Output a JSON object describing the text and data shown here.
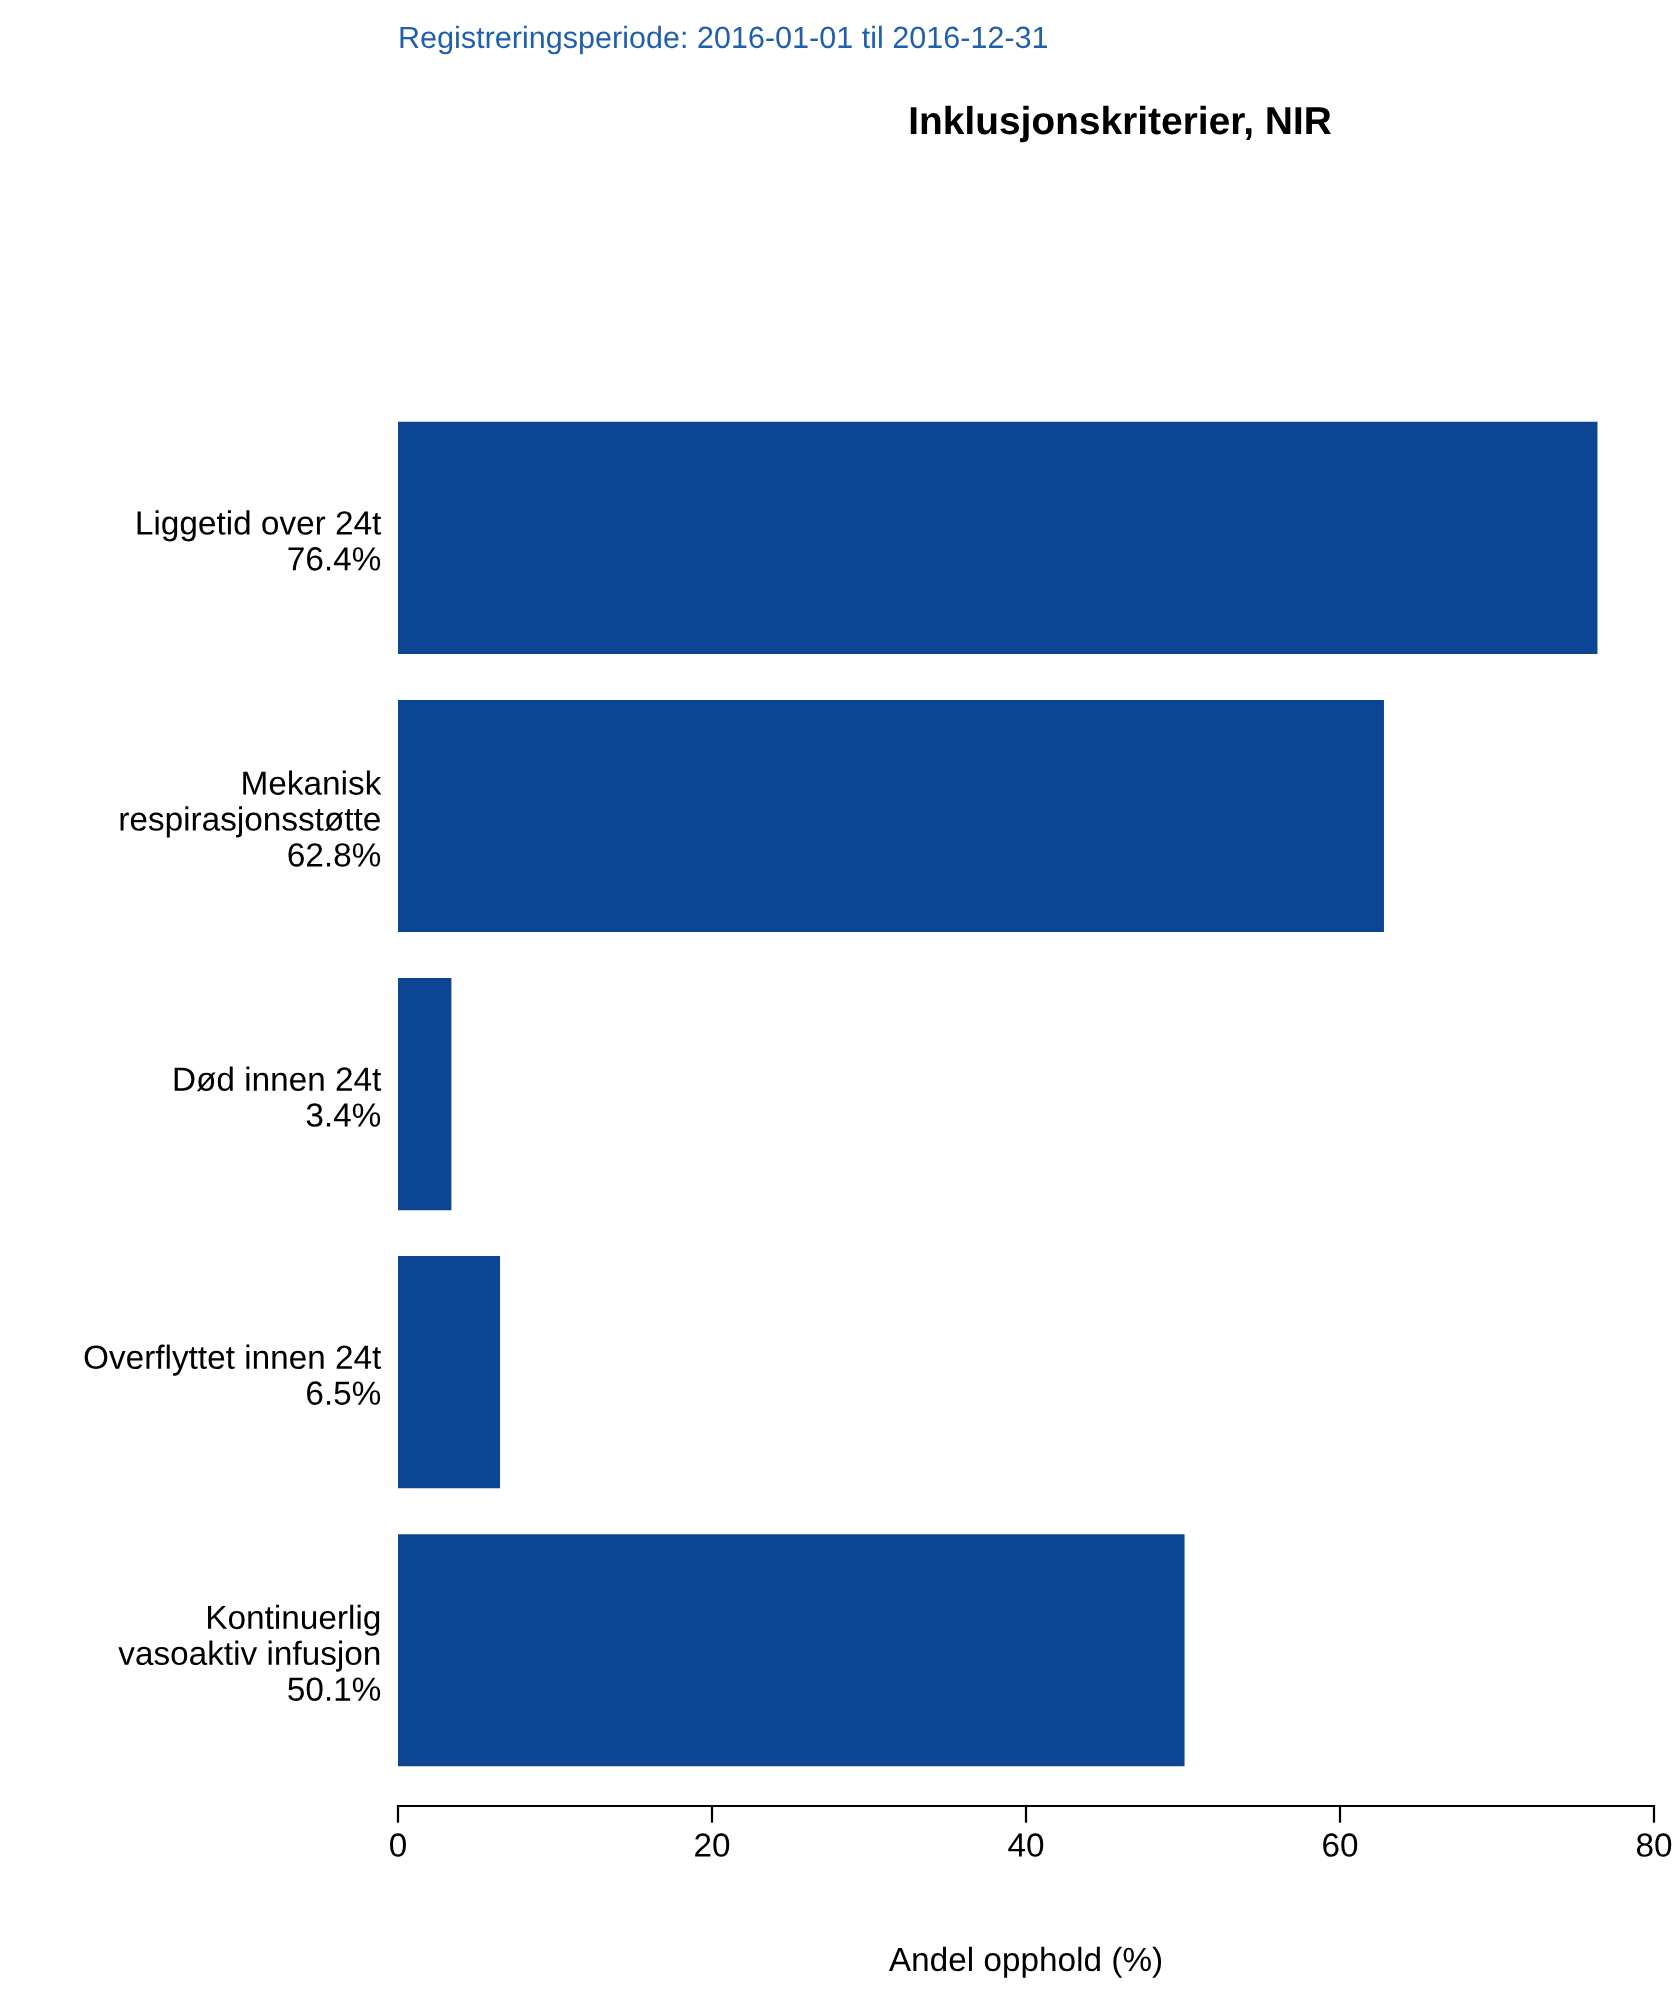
{
  "chart_data": {
    "type": "bar",
    "orientation": "horizontal",
    "subtitle": "Registreringsperiode: 2016-01-01 til 2016-12-31",
    "title": "Inklusjonskriterier, NIR",
    "xlabel": "Andel opphold (%)",
    "categories": [
      "Liggetid over 24t",
      "Mekanisk\nrespirasjonsstøtte",
      "Død innen 24t",
      "Overflyttet innen 24t",
      "Kontinuerlig\nvasoaktiv infusjon"
    ],
    "values": [
      76.4,
      62.8,
      3.4,
      6.5,
      50.1
    ],
    "value_labels": [
      "76.4%",
      "62.8%",
      "3.4%",
      "6.5%",
      "50.1%"
    ],
    "color": "#0b4594",
    "xlim": [
      0,
      80
    ],
    "xticks": [
      0,
      20,
      40,
      60,
      80
    ],
    "grid": false
  }
}
